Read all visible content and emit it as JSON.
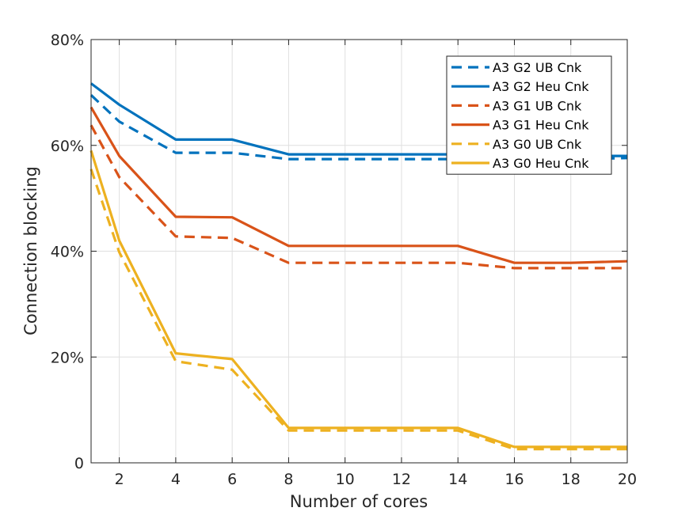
{
  "chart_data": {
    "type": "line",
    "xlabel": "Number of cores",
    "ylabel": "Connection blocking",
    "xlim": [
      1,
      20
    ],
    "ylim": [
      0,
      80
    ],
    "xticks": [
      2,
      4,
      6,
      8,
      10,
      12,
      14,
      16,
      18,
      20
    ],
    "xtick_labels": [
      "2",
      "4",
      "6",
      "8",
      "10",
      "12",
      "14",
      "16",
      "18",
      "20"
    ],
    "yticks": [
      0,
      20,
      40,
      60,
      80
    ],
    "ytick_labels": [
      "0",
      "20%",
      "40%",
      "60%",
      "80%"
    ],
    "grid": true,
    "legend_position": "top-right",
    "x": [
      1,
      2,
      4,
      6,
      8,
      10,
      12,
      14,
      16,
      18,
      20
    ],
    "series": [
      {
        "name": "A3 G2 UB Cnk",
        "color": "#0072BD",
        "style": "dashed",
        "values": [
          69.5,
          64.5,
          58.6,
          58.6,
          57.4,
          57.4,
          57.4,
          57.4,
          57.4,
          57.4,
          57.6
        ]
      },
      {
        "name": "A3 G2 Heu Cnk",
        "color": "#0072BD",
        "style": "solid",
        "values": [
          71.7,
          67.7,
          61.1,
          61.1,
          58.3,
          58.3,
          58.3,
          58.3,
          58.3,
          58.0,
          58.0
        ]
      },
      {
        "name": "A3 G1 UB Cnk",
        "color": "#D95319",
        "style": "dashed",
        "values": [
          63.8,
          54.0,
          42.8,
          42.5,
          37.8,
          37.8,
          37.8,
          37.8,
          36.8,
          36.8,
          36.8
        ]
      },
      {
        "name": "A3 G1 Heu Cnk",
        "color": "#D95319",
        "style": "solid",
        "values": [
          67.2,
          58.0,
          46.5,
          46.4,
          41.0,
          41.0,
          41.0,
          41.0,
          37.8,
          37.8,
          38.1
        ]
      },
      {
        "name": "A3 G0 UB Cnk",
        "color": "#EDB120",
        "style": "dashed",
        "values": [
          55.5,
          39.8,
          19.2,
          17.6,
          6.1,
          6.1,
          6.1,
          6.1,
          2.6,
          2.6,
          2.6
        ]
      },
      {
        "name": "A3 G0 Heu Cnk",
        "color": "#EDB120",
        "style": "solid",
        "values": [
          59.0,
          42.0,
          20.7,
          19.6,
          6.6,
          6.6,
          6.6,
          6.6,
          3.0,
          3.0,
          3.0
        ]
      }
    ]
  }
}
